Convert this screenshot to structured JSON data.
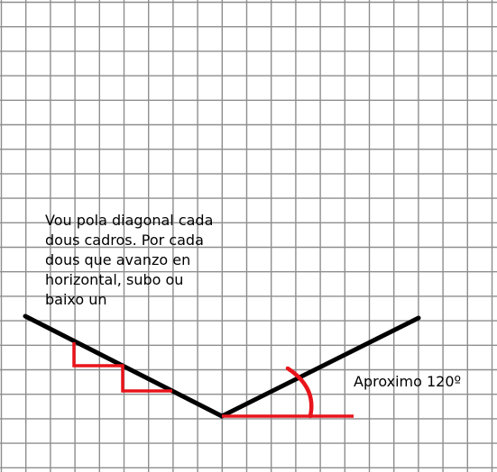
{
  "diagram": {
    "note_lines": [
      "Vou pola diagonal cada",
      "dous cadros. Por cada",
      "dous que avanzo en",
      "horizontal, subo ou",
      "baixo un"
    ],
    "angle_label": "Aproximo 120º"
  },
  "colors": {
    "grid": "#8e8e8e",
    "lines": "#000000",
    "construction": "#e8141b"
  }
}
